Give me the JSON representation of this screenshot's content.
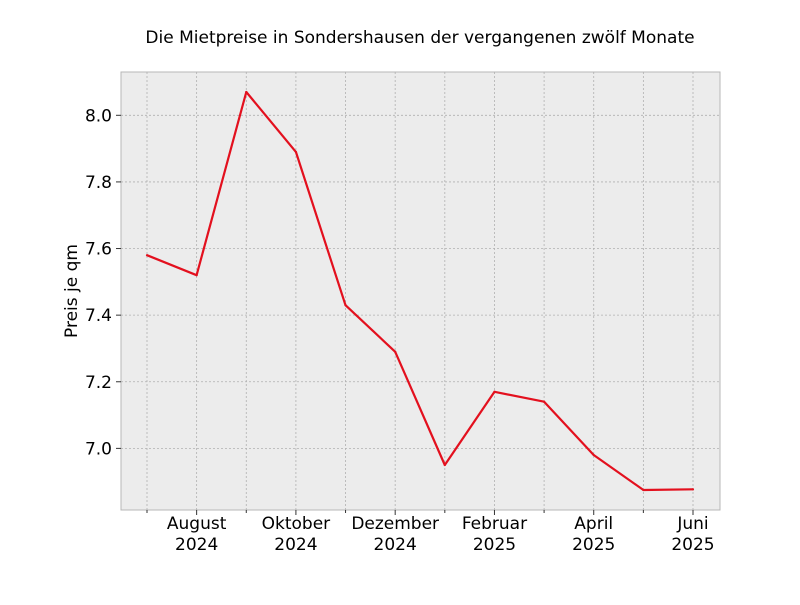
{
  "chart_data": {
    "type": "line",
    "title": "Die Mietpreise in Sondershausen der vergangenen zwölf Monate",
    "xlabel": "",
    "ylabel": "Preis je qm",
    "x": [
      "2024-07",
      "2024-08",
      "2024-09",
      "2024-10",
      "2024-11",
      "2024-12",
      "2025-01",
      "2025-02",
      "2025-03",
      "2025-04",
      "2025-05",
      "2025-06"
    ],
    "series": [
      {
        "values": [
          7.58,
          7.52,
          8.07,
          7.89,
          7.43,
          7.29,
          6.95,
          7.17,
          7.14,
          6.98,
          6.875,
          6.877
        ],
        "color": "#e3101e"
      }
    ],
    "x_tick_labels": [
      {
        "month": "August",
        "year": "2024"
      },
      {
        "month": "Oktober",
        "year": "2024"
      },
      {
        "month": "Dezember",
        "year": "2024"
      },
      {
        "month": "Februar",
        "year": "2025"
      },
      {
        "month": "April",
        "year": "2025"
      },
      {
        "month": "Juni",
        "year": "2025"
      }
    ],
    "y_ticks": [
      "7.0",
      "7.2",
      "7.4",
      "7.6",
      "7.8",
      "8.0"
    ],
    "ylim": [
      6.815,
      8.13
    ],
    "grid": true,
    "plot_background": "#ececec",
    "grid_color": "#b0b0b0"
  }
}
